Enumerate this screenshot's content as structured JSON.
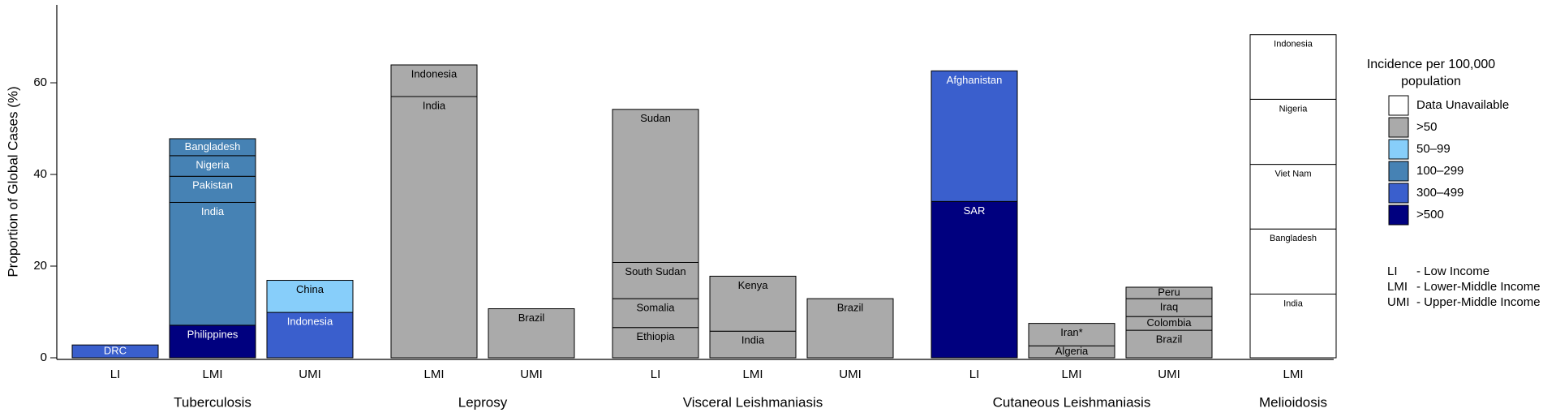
{
  "chart_data": {
    "type": "stacked-bar",
    "ylabel": "Proportion of Global Cases (%)",
    "ylim": [
      0,
      77
    ],
    "yticks": [
      0,
      20,
      40,
      60
    ],
    "legend": {
      "title": [
        "Incidence per 100,000",
        "population"
      ],
      "items": [
        {
          "label": "Data Unavailable",
          "color": "#ffffff"
        },
        {
          "label": ">50",
          "color": "#aaaaaa"
        },
        {
          "label": "50–99",
          "color": "#87cefa"
        },
        {
          "label": "100–299",
          "color": "#4682b4"
        },
        {
          "label": "300–499",
          "color": "#3a5fcd"
        },
        {
          "label": ">500",
          "color": "#00007f"
        }
      ]
    },
    "notes": [
      {
        "abbr": "LI",
        "label": "- Low Income"
      },
      {
        "abbr": "LMI",
        "label": "- Lower-Middle Income"
      },
      {
        "abbr": "UMI",
        "label": "- Upper-Middle Income"
      }
    ],
    "groups": [
      {
        "name": "Tuberculosis",
        "bars": [
          {
            "category": "LI",
            "segments": [
              {
                "name": "DRC",
                "value": 2.8,
                "color": "#3a5fcd"
              }
            ]
          },
          {
            "category": "LMI",
            "segments": [
              {
                "name": "Philippines",
                "value": 7.1,
                "color": "#00007f"
              },
              {
                "name": "India",
                "value": 26.8,
                "color": "#4682b4"
              },
              {
                "name": "Pakistan",
                "value": 5.7,
                "color": "#4682b4"
              },
              {
                "name": "Nigeria",
                "value": 4.5,
                "color": "#4682b4"
              },
              {
                "name": "Bangladesh",
                "value": 3.7,
                "color": "#4682b4"
              }
            ]
          },
          {
            "category": "UMI",
            "segments": [
              {
                "name": "Indonesia",
                "value": 9.9,
                "color": "#3a5fcd"
              },
              {
                "name": "China",
                "value": 7.0,
                "color": "#87cefa"
              }
            ]
          }
        ]
      },
      {
        "name": "Leprosy",
        "bars": [
          {
            "category": "LMI",
            "segments": [
              {
                "name": "India",
                "value": 57.0,
                "color": "#aaaaaa"
              },
              {
                "name": "Indonesia",
                "value": 6.9,
                "color": "#aaaaaa"
              }
            ]
          },
          {
            "category": "UMI",
            "segments": [
              {
                "name": "Brazil",
                "value": 10.7,
                "color": "#aaaaaa"
              }
            ]
          }
        ]
      },
      {
        "name": "Visceral Leishmaniasis",
        "bars": [
          {
            "category": "LI",
            "segments": [
              {
                "name": "Ethiopia",
                "value": 6.6,
                "color": "#aaaaaa"
              },
              {
                "name": "Somalia",
                "value": 6.3,
                "color": "#aaaaaa"
              },
              {
                "name": "South Sudan",
                "value": 7.9,
                "color": "#aaaaaa"
              },
              {
                "name": "Sudan",
                "value": 33.4,
                "color": "#aaaaaa"
              }
            ]
          },
          {
            "category": "LMI",
            "segments": [
              {
                "name": "India",
                "value": 5.8,
                "color": "#aaaaaa"
              },
              {
                "name": "Kenya",
                "value": 12.0,
                "color": "#aaaaaa"
              }
            ]
          },
          {
            "category": "UMI",
            "segments": [
              {
                "name": "Brazil",
                "value": 12.9,
                "color": "#aaaaaa"
              }
            ]
          }
        ]
      },
      {
        "name": "Cutaneous Leishmaniasis",
        "bars": [
          {
            "category": "LI",
            "segments": [
              {
                "name": "SAR",
                "value": 34.1,
                "color": "#00007f"
              },
              {
                "name": "Afghanistan",
                "value": 28.5,
                "color": "#3a5fcd"
              }
            ]
          },
          {
            "category": "LMI",
            "segments": [
              {
                "name": "Algeria",
                "value": 2.6,
                "color": "#aaaaaa"
              },
              {
                "name": "Iran*",
                "value": 4.9,
                "color": "#aaaaaa"
              }
            ]
          },
          {
            "category": "UMI",
            "segments": [
              {
                "name": "Brazil",
                "value": 6.0,
                "color": "#aaaaaa"
              },
              {
                "name": "Colombia",
                "value": 3.0,
                "color": "#aaaaaa"
              },
              {
                "name": "Iraq",
                "value": 3.9,
                "color": "#aaaaaa"
              },
              {
                "name": "Peru",
                "value": 2.5,
                "color": "#aaaaaa"
              }
            ]
          }
        ]
      },
      {
        "name": "Melioidosis",
        "bars": [
          {
            "category": "LMI",
            "segments": [
              {
                "name": "India",
                "value": 13.9,
                "color": "#ffffff"
              },
              {
                "name": "Bangladesh",
                "value": 14.2,
                "color": "#ffffff"
              },
              {
                "name": "Viet Nam",
                "value": 14.1,
                "color": "#ffffff"
              },
              {
                "name": "Nigeria",
                "value": 14.2,
                "color": "#ffffff"
              },
              {
                "name": "Indonesia",
                "value": 14.1,
                "color": "#ffffff"
              }
            ]
          }
        ]
      }
    ]
  }
}
